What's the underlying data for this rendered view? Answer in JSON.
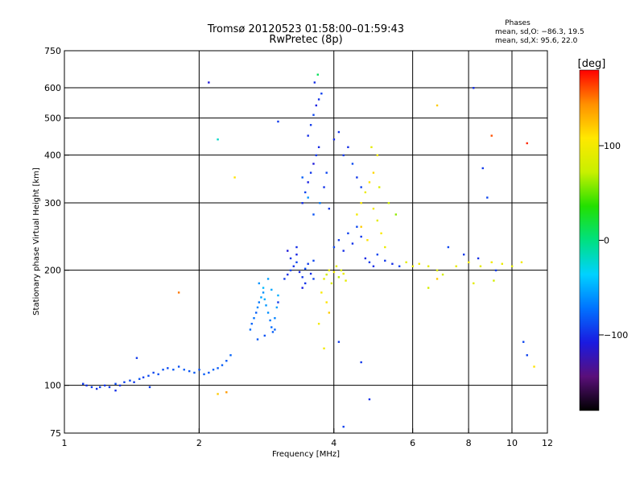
{
  "header": {
    "title": "Tromsø 20120523 01:58:00–01:59:43",
    "subtitle": "RwPretec (8p)",
    "stats_title": "Phases",
    "stats_o": "mean, sd,O: −86.3, 19.5",
    "stats_x": "mean, sd,X:  95.6, 22.0"
  },
  "colorbar": {
    "unit_label": "[deg]",
    "range": [
      -180,
      180
    ],
    "ticks": [
      {
        "value": 100,
        "label": "100"
      },
      {
        "value": 0,
        "label": "0"
      },
      {
        "value": -100,
        "label": "−100"
      }
    ],
    "stops": [
      "#000000",
      "#5a0f7a",
      "#1a1ae0",
      "#0072ff",
      "#00d2ff",
      "#00e080",
      "#22e000",
      "#c8f000",
      "#ffe800",
      "#ff9000",
      "#ff0000"
    ]
  },
  "chart_data": {
    "type": "scatter",
    "title": "Tromsø 20120523 01:58:00–01:59:43",
    "subtitle": "RwPretec (8p)",
    "xlabel": "Frequency [MHz]",
    "ylabel": "Stationary phase Virtual Height [km]",
    "xscale": "log",
    "yscale": "log",
    "xlim": [
      1,
      12
    ],
    "ylim": [
      75,
      750
    ],
    "xticks": [
      {
        "value": 1,
        "label": "1"
      },
      {
        "value": 2,
        "label": "2"
      },
      {
        "value": 4,
        "label": "4"
      },
      {
        "value": 6,
        "label": "6"
      },
      {
        "value": 8,
        "label": "8"
      },
      {
        "value": 10,
        "label": "10"
      },
      {
        "value": 12,
        "label": "12"
      }
    ],
    "yticks": [
      {
        "value": 75,
        "label": "75"
      },
      {
        "value": 100,
        "label": "100"
      },
      {
        "value": 200,
        "label": "200"
      },
      {
        "value": 300,
        "label": "300"
      },
      {
        "value": 400,
        "label": "400"
      },
      {
        "value": 500,
        "label": "500"
      },
      {
        "value": 600,
        "label": "600"
      },
      {
        "value": 750,
        "label": "750"
      }
    ],
    "grid": true,
    "color_encoding": "phase [deg]",
    "points": [
      [
        1.1,
        101,
        -95
      ],
      [
        1.12,
        100,
        -98
      ],
      [
        1.15,
        99,
        -92
      ],
      [
        1.18,
        98,
        -100
      ],
      [
        1.2,
        99,
        -90
      ],
      [
        1.23,
        100,
        -96
      ],
      [
        1.26,
        99,
        -94
      ],
      [
        1.3,
        101,
        -88
      ],
      [
        1.33,
        100,
        -97
      ],
      [
        1.36,
        102,
        -92
      ],
      [
        1.4,
        103,
        -90
      ],
      [
        1.43,
        102,
        -95
      ],
      [
        1.47,
        104,
        -85
      ],
      [
        1.5,
        105,
        -92
      ],
      [
        1.54,
        106,
        -88
      ],
      [
        1.58,
        108,
        -90
      ],
      [
        1.62,
        107,
        -86
      ],
      [
        1.66,
        110,
        -84
      ],
      [
        1.7,
        111,
        -88
      ],
      [
        1.75,
        110,
        -82
      ],
      [
        1.8,
        112,
        -86
      ],
      [
        1.85,
        110,
        -80
      ],
      [
        1.9,
        109,
        -84
      ],
      [
        1.95,
        108,
        -82
      ],
      [
        2.0,
        110,
        -86
      ],
      [
        2.05,
        107,
        -80
      ],
      [
        2.1,
        108,
        -84
      ],
      [
        2.15,
        110,
        -78
      ],
      [
        2.2,
        111,
        -82
      ],
      [
        2.25,
        113,
        -80
      ],
      [
        2.3,
        116,
        -82
      ],
      [
        2.35,
        120,
        -78
      ],
      [
        1.45,
        118,
        -95
      ],
      [
        1.3,
        97,
        -100
      ],
      [
        1.55,
        99,
        -92
      ],
      [
        2.6,
        140,
        -75
      ],
      [
        2.62,
        145,
        -78
      ],
      [
        2.65,
        150,
        -72
      ],
      [
        2.68,
        155,
        -80
      ],
      [
        2.7,
        160,
        -65
      ],
      [
        2.72,
        165,
        -70
      ],
      [
        2.75,
        170,
        -55
      ],
      [
        2.78,
        175,
        -60
      ],
      [
        2.8,
        168,
        -50
      ],
      [
        2.82,
        162,
        -58
      ],
      [
        2.85,
        155,
        -62
      ],
      [
        2.88,
        148,
        -70
      ],
      [
        2.9,
        142,
        -76
      ],
      [
        2.92,
        138,
        -80
      ],
      [
        2.95,
        150,
        -66
      ],
      [
        2.98,
        160,
        -55
      ],
      [
        3.0,
        172,
        -50
      ],
      [
        2.72,
        185,
        -60
      ],
      [
        2.78,
        180,
        -45
      ],
      [
        2.85,
        190,
        -55
      ],
      [
        2.9,
        178,
        -52
      ],
      [
        2.7,
        132,
        -82
      ],
      [
        2.8,
        135,
        -85
      ],
      [
        2.95,
        140,
        -78
      ],
      [
        3.1,
        190,
        -95
      ],
      [
        3.15,
        195,
        -100
      ],
      [
        3.2,
        200,
        -92
      ],
      [
        3.25,
        205,
        -98
      ],
      [
        3.3,
        210,
        -90
      ],
      [
        3.35,
        198,
        -102
      ],
      [
        3.4,
        192,
        -96
      ],
      [
        3.45,
        202,
        -88
      ],
      [
        3.5,
        208,
        -94
      ],
      [
        3.55,
        196,
        -100
      ],
      [
        3.6,
        190,
        -92
      ],
      [
        3.2,
        215,
        -96
      ],
      [
        3.3,
        220,
        -104
      ],
      [
        3.45,
        185,
        -98
      ],
      [
        3.6,
        212,
        -90
      ],
      [
        3.4,
        180,
        -106
      ],
      [
        3.3,
        230,
        -100
      ],
      [
        3.15,
        225,
        -110
      ],
      [
        3.4,
        300,
        -100
      ],
      [
        3.45,
        320,
        -92
      ],
      [
        3.5,
        340,
        -105
      ],
      [
        3.55,
        360,
        -96
      ],
      [
        3.6,
        380,
        -110
      ],
      [
        3.65,
        400,
        -95
      ],
      [
        3.7,
        420,
        -102
      ],
      [
        3.5,
        450,
        -100
      ],
      [
        3.55,
        480,
        -95
      ],
      [
        3.6,
        510,
        -90
      ],
      [
        3.65,
        540,
        -105
      ],
      [
        3.7,
        560,
        -98
      ],
      [
        3.75,
        580,
        -92
      ],
      [
        3.62,
        620,
        -100
      ],
      [
        3.68,
        650,
        10
      ],
      [
        3.4,
        350,
        -80
      ],
      [
        3.5,
        310,
        -60
      ],
      [
        3.6,
        280,
        -85
      ],
      [
        3.72,
        300,
        -70
      ],
      [
        3.8,
        330,
        -98
      ],
      [
        3.85,
        360,
        -90
      ],
      [
        3.9,
        290,
        -96
      ],
      [
        3.8,
        190,
        90
      ],
      [
        3.85,
        195,
        80
      ],
      [
        3.9,
        200,
        95
      ],
      [
        3.95,
        185,
        85
      ],
      [
        4.0,
        198,
        100
      ],
      [
        4.05,
        205,
        90
      ],
      [
        4.1,
        192,
        70
      ],
      [
        4.15,
        200,
        85
      ],
      [
        4.2,
        196,
        95
      ],
      [
        4.25,
        188,
        92
      ],
      [
        3.75,
        175,
        105
      ],
      [
        3.85,
        165,
        110
      ],
      [
        3.9,
        155,
        120
      ],
      [
        3.7,
        145,
        100
      ],
      [
        4.0,
        230,
        -90
      ],
      [
        4.1,
        240,
        -95
      ],
      [
        4.2,
        225,
        -100
      ],
      [
        4.3,
        250,
        -92
      ],
      [
        4.4,
        235,
        -98
      ],
      [
        4.5,
        260,
        -90
      ],
      [
        4.6,
        245,
        -96
      ],
      [
        4.7,
        215,
        -102
      ],
      [
        4.8,
        210,
        -94
      ],
      [
        4.9,
        205,
        -100
      ],
      [
        5.0,
        220,
        -90
      ],
      [
        5.2,
        212,
        -96
      ],
      [
        5.4,
        208,
        -100
      ],
      [
        5.6,
        205,
        -92
      ],
      [
        4.2,
        400,
        -95
      ],
      [
        4.3,
        420,
        -100
      ],
      [
        4.4,
        380,
        -88
      ],
      [
        4.5,
        350,
        -96
      ],
      [
        4.6,
        330,
        -92
      ],
      [
        4.0,
        440,
        -102
      ],
      [
        4.1,
        460,
        -98
      ],
      [
        4.5,
        280,
        100
      ],
      [
        4.6,
        300,
        105
      ],
      [
        4.7,
        320,
        95
      ],
      [
        4.8,
        340,
        110
      ],
      [
        4.9,
        290,
        100
      ],
      [
        5.0,
        270,
        90
      ],
      [
        5.1,
        250,
        105
      ],
      [
        5.2,
        230,
        95
      ],
      [
        4.6,
        260,
        120
      ],
      [
        4.75,
        240,
        110
      ],
      [
        4.9,
        360,
        115
      ],
      [
        5.0,
        400,
        100
      ],
      [
        4.85,
        420,
        90
      ],
      [
        5.05,
        330,
        85
      ],
      [
        5.3,
        300,
        75
      ],
      [
        5.5,
        280,
        60
      ],
      [
        5.8,
        210,
        90
      ],
      [
        6.0,
        205,
        95
      ],
      [
        6.2,
        208,
        100
      ],
      [
        6.5,
        205,
        90
      ],
      [
        6.8,
        200,
        85
      ],
      [
        7.0,
        195,
        80
      ],
      [
        7.5,
        205,
        95
      ],
      [
        8.0,
        210,
        100
      ],
      [
        8.5,
        205,
        90
      ],
      [
        9.0,
        210,
        100
      ],
      [
        9.5,
        208,
        95
      ],
      [
        10.0,
        205,
        90
      ],
      [
        10.5,
        210,
        100
      ],
      [
        7.2,
        230,
        -90
      ],
      [
        7.8,
        220,
        -95
      ],
      [
        8.4,
        215,
        -100
      ],
      [
        9.2,
        200,
        -95
      ],
      [
        8.2,
        185,
        90
      ],
      [
        9.1,
        188,
        80
      ],
      [
        6.5,
        180,
        80
      ],
      [
        6.8,
        190,
        120
      ],
      [
        2.1,
        620,
        -110
      ],
      [
        2.4,
        350,
        110
      ],
      [
        3.0,
        490,
        -95
      ],
      [
        2.2,
        440,
        -20
      ],
      [
        6.8,
        540,
        120
      ],
      [
        8.2,
        600,
        -100
      ],
      [
        8.8,
        310,
        -90
      ],
      [
        8.6,
        370,
        -95
      ],
      [
        9.0,
        450,
        160
      ],
      [
        10.8,
        430,
        170
      ],
      [
        4.2,
        78,
        -92
      ],
      [
        4.8,
        92,
        -98
      ],
      [
        4.6,
        115,
        -96
      ],
      [
        10.6,
        130,
        -90
      ],
      [
        10.8,
        120,
        -92
      ],
      [
        11.2,
        112,
        110
      ],
      [
        2.2,
        95,
        120
      ],
      [
        2.3,
        96,
        140
      ],
      [
        1.8,
        175,
        150
      ],
      [
        4.1,
        130,
        -95
      ],
      [
        3.0,
        165,
        -95
      ],
      [
        3.8,
        125,
        100
      ]
    ]
  }
}
